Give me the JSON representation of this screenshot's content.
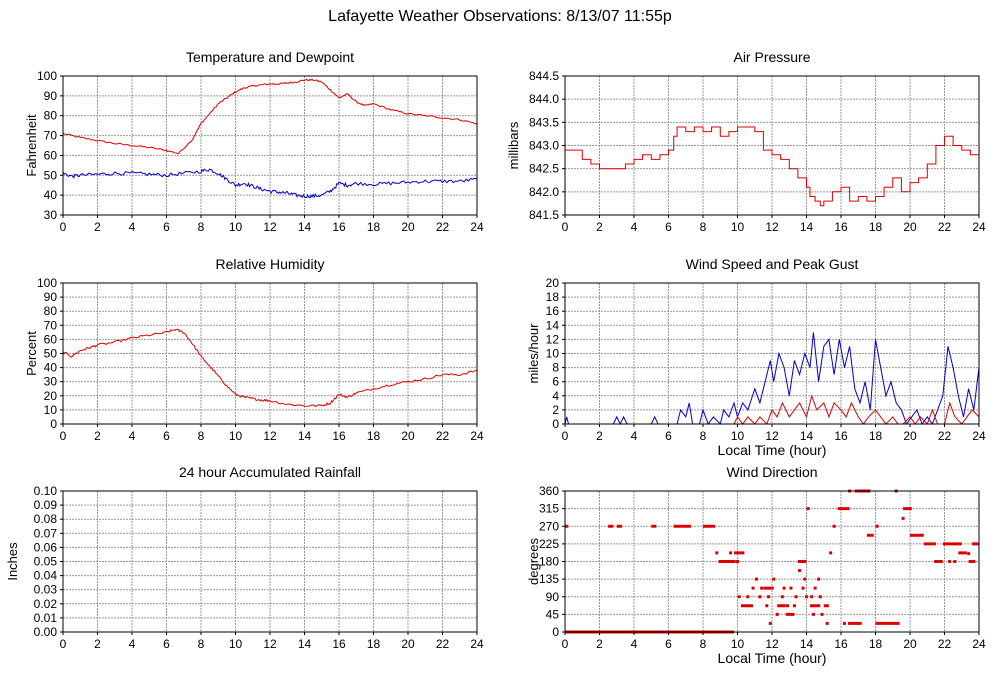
{
  "page": {
    "title": "Lafayette Weather Observations: 8/13/07 11:55p"
  },
  "colors": {
    "red": "#dd0000",
    "blue": "#0000cc",
    "grid": "#999999",
    "axis": "#000000"
  },
  "chart_data": [
    {
      "id": "temp",
      "type": "line",
      "title": "Temperature and Dewpoint",
      "xlabel": "",
      "ylabel": "Fahrenheit",
      "xlim": [
        0,
        24
      ],
      "ylim": [
        30,
        100
      ],
      "xticks": [
        0,
        2,
        4,
        6,
        8,
        10,
        12,
        14,
        16,
        18,
        20,
        22,
        24
      ],
      "yticks": [
        "30",
        "40",
        "50",
        "60",
        "70",
        "80",
        "90",
        "100"
      ],
      "grid": true,
      "series": [
        {
          "color": "red",
          "noise": 0.4,
          "x": [
            0,
            1,
            2,
            3,
            4,
            5,
            6,
            6.7,
            7.5,
            8,
            8.5,
            9,
            9.5,
            10,
            10.5,
            11,
            11.5,
            12,
            12.5,
            13,
            13.5,
            14,
            14.5,
            15,
            15.5,
            16,
            16.5,
            17,
            17.5,
            18,
            19,
            20,
            21,
            22,
            23,
            24
          ],
          "y": [
            71,
            69,
            67.5,
            66,
            65,
            64,
            62.5,
            61,
            68,
            76,
            81,
            86,
            89,
            92,
            94,
            95,
            95.5,
            96,
            96,
            96.5,
            97,
            98,
            98,
            97,
            93,
            89,
            91,
            87,
            85,
            86,
            83,
            81,
            80,
            79,
            78,
            76
          ]
        },
        {
          "color": "blue",
          "noise": 0.9,
          "x": [
            0,
            0.5,
            1,
            2,
            3,
            4,
            5,
            6,
            7,
            8,
            8.5,
            9,
            9.5,
            10,
            10.5,
            11,
            11.5,
            12,
            12.5,
            13,
            13.5,
            14,
            14.5,
            15,
            15.5,
            16,
            16.5,
            17,
            18,
            19,
            20,
            21,
            22,
            23,
            24
          ],
          "y": [
            51,
            49.5,
            50,
            50.5,
            51,
            51,
            50.5,
            50,
            51,
            52,
            53,
            51,
            48,
            45,
            46,
            44.5,
            43,
            42,
            41.5,
            41,
            40,
            39.5,
            39.5,
            40,
            42,
            46,
            45,
            46,
            45.5,
            46,
            46.5,
            47,
            47,
            47,
            48
          ]
        }
      ]
    },
    {
      "id": "pressure",
      "type": "line",
      "title": "Air Pressure",
      "xlabel": "",
      "ylabel": "millibars",
      "xlim": [
        0,
        24
      ],
      "ylim": [
        841.5,
        844.5
      ],
      "xticks": [
        0,
        2,
        4,
        6,
        8,
        10,
        12,
        14,
        16,
        18,
        20,
        22,
        24
      ],
      "yticks": [
        "841.5",
        "842.0",
        "842.5",
        "843.0",
        "843.5",
        "844.0",
        "844.5"
      ],
      "grid": true,
      "series": [
        {
          "color": "red",
          "step": true,
          "noise": 0,
          "x": [
            0,
            1,
            1.5,
            2,
            3,
            3.5,
            4,
            4.5,
            5,
            5.5,
            6,
            6.3,
            6.5,
            7,
            7.5,
            8,
            8.5,
            9,
            9.5,
            10,
            10.5,
            11,
            11.5,
            12,
            12.5,
            13,
            13.5,
            14,
            14.2,
            14.5,
            14.8,
            15,
            15.5,
            16,
            16.5,
            17,
            17.5,
            18,
            18.5,
            19,
            19.5,
            20,
            20.5,
            21,
            21.5,
            22,
            22.5,
            23,
            23.5,
            24
          ],
          "y": [
            842.9,
            842.7,
            842.6,
            842.5,
            842.5,
            842.6,
            842.7,
            842.8,
            842.7,
            842.8,
            842.9,
            843.2,
            843.4,
            843.3,
            843.4,
            843.3,
            843.4,
            843.2,
            843.3,
            843.4,
            843.4,
            843.3,
            842.9,
            842.8,
            842.7,
            842.5,
            842.3,
            842.1,
            841.9,
            841.8,
            841.7,
            841.8,
            842.0,
            842.1,
            841.8,
            841.9,
            841.8,
            841.9,
            842.1,
            842.3,
            842.0,
            842.2,
            842.3,
            842.6,
            843.0,
            843.2,
            843.0,
            842.9,
            842.8,
            842.7
          ]
        }
      ]
    },
    {
      "id": "humidity",
      "type": "line",
      "title": "Relative Humidity",
      "xlabel": "",
      "ylabel": "Percent",
      "xlim": [
        0,
        24
      ],
      "ylim": [
        0,
        100
      ],
      "xticks": [
        0,
        2,
        4,
        6,
        8,
        10,
        12,
        14,
        16,
        18,
        20,
        22,
        24
      ],
      "yticks": [
        "0",
        "10",
        "20",
        "30",
        "40",
        "50",
        "60",
        "70",
        "80",
        "90",
        "100"
      ],
      "grid": true,
      "series": [
        {
          "color": "red",
          "noise": 0.8,
          "x": [
            0,
            0.5,
            1,
            1.5,
            2,
            3,
            4,
            5,
            6,
            6.5,
            7,
            7.5,
            8,
            8.5,
            9,
            9.5,
            10,
            10.5,
            11,
            11.5,
            12,
            13,
            14,
            15,
            15.5,
            16,
            16.5,
            17,
            18,
            19,
            20,
            21,
            22,
            23,
            24
          ],
          "y": [
            51,
            48,
            52,
            54,
            56,
            58,
            61,
            63,
            65,
            67,
            65,
            57,
            48,
            41,
            34,
            27,
            21,
            19,
            18,
            17,
            16.5,
            14,
            13,
            13,
            15,
            21,
            19,
            22,
            25,
            28,
            30,
            32,
            35,
            35,
            38
          ]
        }
      ]
    },
    {
      "id": "wind",
      "type": "line",
      "title": "Wind Speed and Peak Gust",
      "xlabel": "Local Time (hour)",
      "ylabel": "miles/hour",
      "xlim": [
        0,
        24
      ],
      "ylim": [
        0,
        20
      ],
      "xticks": [
        0,
        2,
        4,
        6,
        8,
        10,
        12,
        14,
        16,
        18,
        20,
        22,
        24
      ],
      "yticks": [
        "0",
        "2",
        "4",
        "6",
        "8",
        "10",
        "12",
        "14",
        "16",
        "18",
        "20"
      ],
      "grid": true,
      "series": [
        {
          "color": "blue",
          "noise": 0,
          "x": [
            0,
            0.1,
            0.2,
            2.8,
            3.0,
            3.2,
            3.4,
            3.6,
            5.0,
            5.2,
            5.4,
            6.5,
            6.7,
            7.0,
            7.2,
            7.4,
            7.8,
            8.0,
            8.3,
            8.6,
            9.0,
            9.2,
            9.5,
            9.8,
            10.0,
            10.3,
            10.6,
            11.0,
            11.3,
            11.6,
            11.9,
            12.1,
            12.4,
            12.7,
            13.0,
            13.3,
            13.6,
            13.9,
            14.2,
            14.4,
            14.7,
            15.0,
            15.3,
            15.6,
            15.9,
            16.2,
            16.5,
            16.8,
            17.1,
            17.4,
            17.7,
            18.0,
            18.3,
            18.6,
            18.9,
            19.2,
            19.5,
            19.8,
            20.1,
            20.4,
            20.7,
            21.0,
            21.3,
            21.6,
            21.9,
            22.2,
            22.5,
            22.8,
            23.1,
            23.4,
            23.7,
            24
          ],
          "y": [
            0,
            1,
            0,
            0,
            1,
            0,
            1,
            0,
            0,
            1,
            0,
            0,
            2,
            1,
            3,
            0,
            0,
            2,
            0,
            1,
            0,
            2,
            1,
            3,
            1,
            3,
            2,
            5,
            3,
            6,
            9,
            6,
            10,
            8,
            4,
            9,
            7,
            10,
            8,
            13,
            6,
            11,
            12,
            7,
            12,
            8,
            11,
            5,
            3,
            6,
            2,
            12,
            8,
            4,
            6,
            3,
            2,
            0,
            1,
            2,
            0,
            1,
            0,
            2,
            4,
            11,
            8,
            4,
            1,
            5,
            2,
            8
          ]
        },
        {
          "color": "red",
          "noise": 0,
          "x": [
            0,
            9.8,
            10.0,
            10.3,
            10.6,
            11.0,
            11.3,
            11.7,
            12.0,
            12.3,
            12.6,
            13.0,
            13.3,
            13.6,
            14.0,
            14.3,
            14.6,
            15.0,
            15.3,
            15.6,
            16.0,
            16.3,
            16.6,
            17.0,
            17.3,
            17.6,
            18.0,
            18.3,
            18.6,
            19.0,
            19.3,
            19.6,
            20.0,
            20.3,
            20.6,
            21.0,
            21.3,
            21.6,
            22.0,
            22.3,
            22.6,
            23.0,
            23.3,
            23.6,
            24
          ],
          "y": [
            0,
            0,
            1,
            0,
            1,
            0,
            1,
            0,
            2,
            1,
            3,
            1,
            2,
            3,
            1,
            4,
            2,
            3,
            1,
            3,
            2,
            1,
            3,
            1,
            0,
            1,
            2,
            1,
            0,
            1,
            0,
            0,
            1,
            0,
            1,
            0,
            2,
            0,
            0,
            3,
            1,
            0,
            1,
            2,
            1
          ]
        }
      ]
    },
    {
      "id": "rain",
      "type": "line",
      "title": "24 hour Accumulated Rainfall",
      "xlabel": "",
      "ylabel": "Inches",
      "xlim": [
        0,
        24
      ],
      "ylim": [
        0,
        0.1
      ],
      "xticks": [
        0,
        2,
        4,
        6,
        8,
        10,
        12,
        14,
        16,
        18,
        20,
        22,
        24
      ],
      "yticks": [
        "0.00",
        "0.01",
        "0.02",
        "0.03",
        "0.04",
        "0.05",
        "0.06",
        "0.07",
        "0.08",
        "0.09",
        "0.10"
      ],
      "grid": true,
      "series": [
        {
          "color": "red",
          "noise": 0,
          "x": [
            0,
            24
          ],
          "y": [
            0,
            0
          ]
        }
      ]
    },
    {
      "id": "direction",
      "type": "scatter",
      "title": "Wind Direction",
      "xlabel": "Local Time (hour)",
      "ylabel": "degrees",
      "xlim": [
        0,
        24
      ],
      "ylim": [
        0,
        360
      ],
      "xticks": [
        0,
        2,
        4,
        6,
        8,
        10,
        12,
        14,
        16,
        18,
        20,
        22,
        24
      ],
      "yticks": [
        "0",
        "45",
        "90",
        "135",
        "180",
        "225",
        "270",
        "315",
        "360"
      ],
      "grid": true,
      "segments": [
        {
          "x0": 0,
          "x1": 9.8,
          "y": 0
        },
        {
          "x0": 2.5,
          "x1": 2.8,
          "y": 270
        },
        {
          "x0": 3.0,
          "x1": 3.3,
          "y": 270
        },
        {
          "x0": 5.0,
          "x1": 5.3,
          "y": 270
        },
        {
          "x0": 6.3,
          "x1": 7.3,
          "y": 270
        },
        {
          "x0": 8.0,
          "x1": 8.7,
          "y": 270
        },
        {
          "x0": 8.9,
          "x1": 9.9,
          "y": 180
        },
        {
          "x0": 9.8,
          "x1": 10.4,
          "y": 202
        },
        {
          "x0": 10.2,
          "x1": 10.9,
          "y": 67
        },
        {
          "x0": 11.5,
          "x1": 12.1,
          "y": 112
        },
        {
          "x0": 12.3,
          "x1": 12.8,
          "y": 67
        },
        {
          "x0": 12.8,
          "x1": 13.3,
          "y": 45
        },
        {
          "x0": 13.5,
          "x1": 14.0,
          "y": 180
        },
        {
          "x0": 14.2,
          "x1": 14.8,
          "y": 67
        },
        {
          "x0": 15.0,
          "x1": 15.3,
          "y": 67
        },
        {
          "x0": 15.8,
          "x1": 16.5,
          "y": 315
        },
        {
          "x0": 16.4,
          "x1": 17.2,
          "y": 22
        },
        {
          "x0": 16.8,
          "x1": 17.7,
          "y": 360
        },
        {
          "x0": 17.5,
          "x1": 17.9,
          "y": 247
        },
        {
          "x0": 18.0,
          "x1": 19.4,
          "y": 22
        },
        {
          "x0": 19.6,
          "x1": 20.1,
          "y": 315
        },
        {
          "x0": 20.0,
          "x1": 20.8,
          "y": 247
        },
        {
          "x0": 20.8,
          "x1": 21.5,
          "y": 225
        },
        {
          "x0": 21.4,
          "x1": 21.9,
          "y": 180
        },
        {
          "x0": 21.9,
          "x1": 23.0,
          "y": 225
        },
        {
          "x0": 22.8,
          "x1": 23.3,
          "y": 202
        },
        {
          "x0": 23.4,
          "x1": 23.8,
          "y": 180
        },
        {
          "x0": 23.6,
          "x1": 24.0,
          "y": 225
        }
      ],
      "points": [
        [
          0.1,
          270
        ],
        [
          8.8,
          202
        ],
        [
          9.6,
          202
        ],
        [
          10.0,
          180
        ],
        [
          10.1,
          90
        ],
        [
          10.6,
          90
        ],
        [
          10.9,
          112
        ],
        [
          11.1,
          135
        ],
        [
          11.3,
          90
        ],
        [
          11.4,
          112
        ],
        [
          11.7,
          67
        ],
        [
          11.8,
          90
        ],
        [
          11.9,
          22
        ],
        [
          12.1,
          135
        ],
        [
          12.3,
          45
        ],
        [
          12.6,
          90
        ],
        [
          12.7,
          112
        ],
        [
          12.9,
          67
        ],
        [
          13.1,
          112
        ],
        [
          13.3,
          67
        ],
        [
          13.4,
          90
        ],
        [
          13.6,
          157
        ],
        [
          13.8,
          112
        ],
        [
          13.9,
          135
        ],
        [
          14.0,
          90
        ],
        [
          14.1,
          315
        ],
        [
          14.3,
          90
        ],
        [
          14.4,
          45
        ],
        [
          14.5,
          112
        ],
        [
          14.7,
          135
        ],
        [
          14.8,
          90
        ],
        [
          14.9,
          45
        ],
        [
          15.2,
          22
        ],
        [
          15.4,
          202
        ],
        [
          15.6,
          270
        ],
        [
          16.2,
          22
        ],
        [
          16.5,
          360
        ],
        [
          18.1,
          270
        ],
        [
          19.2,
          360
        ],
        [
          19.6,
          290
        ],
        [
          22.3,
          180
        ],
        [
          22.6,
          180
        ],
        [
          23.4,
          200
        ]
      ]
    }
  ]
}
